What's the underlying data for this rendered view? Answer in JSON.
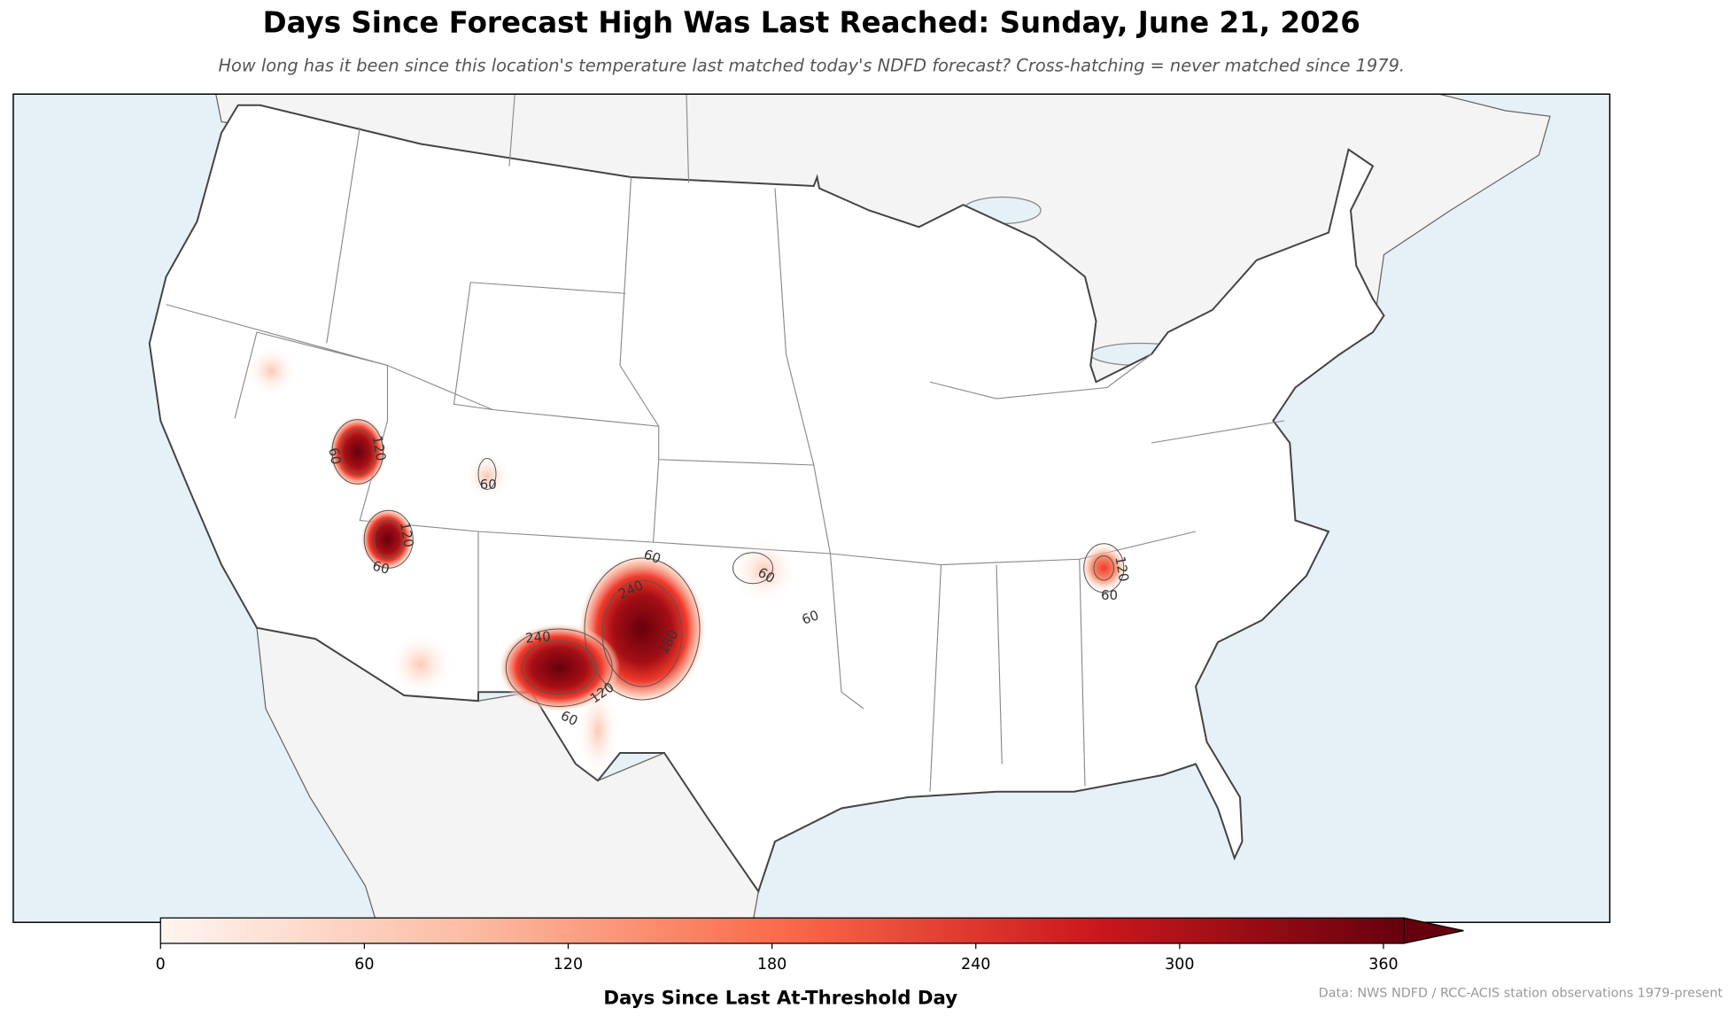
{
  "header": {
    "title": "Days Since Forecast High Was Last Reached: Sunday, June 21, 2026",
    "subtitle": "How long has it been since this location's temperature last matched today's NDFD forecast? Cross-hatching = never matched since 1979."
  },
  "map": {
    "contour_labels": [
      60,
      120,
      60,
      120,
      60,
      60,
      240,
      60,
      60,
      240,
      120,
      60,
      180,
      120,
      60
    ]
  },
  "colorbar": {
    "label": "Days Since Last At-Threshold Day",
    "lim": [
      0,
      366
    ],
    "ticks": [
      0,
      60,
      120,
      180,
      240,
      300,
      360
    ],
    "colormap": [
      "#fff5f0",
      "#fcbba1",
      "#fb6a4a",
      "#cb181d",
      "#67000d"
    ]
  },
  "source": "Data: NWS NDFD / RCC-ACIS station observations 1979-present"
}
